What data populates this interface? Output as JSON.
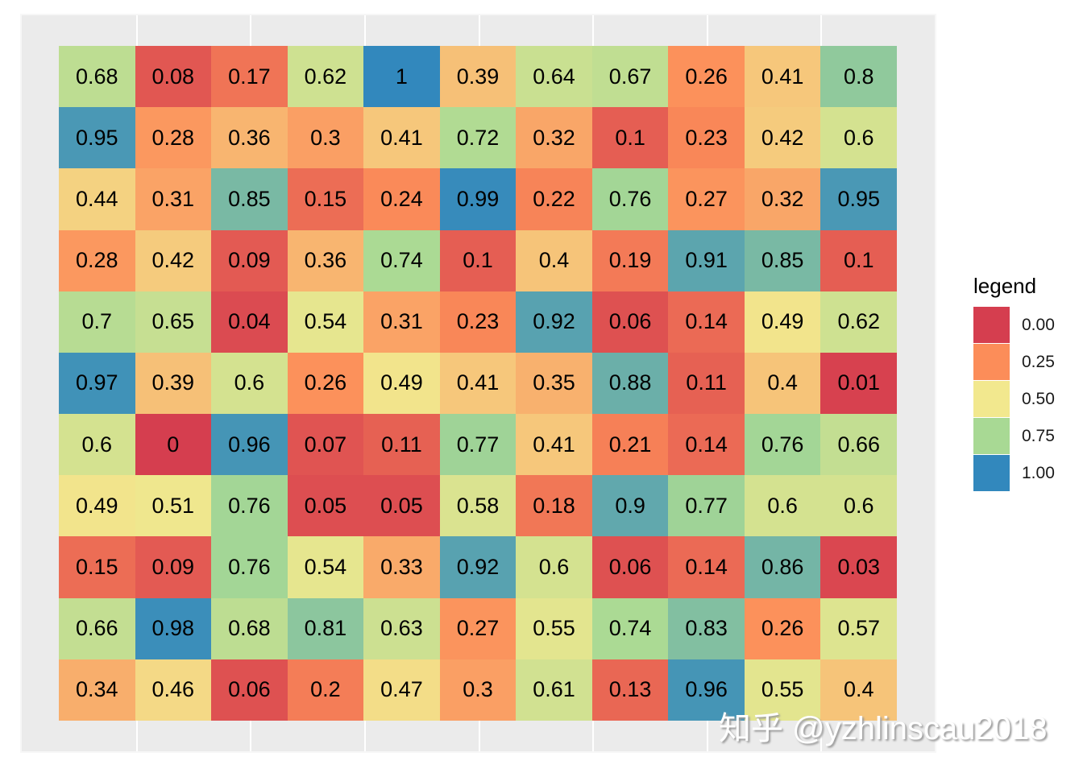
{
  "chart_data": {
    "type": "heatmap",
    "title": "",
    "xlabel": "",
    "ylabel": "",
    "rows": 11,
    "cols": 11,
    "values": [
      [
        0.68,
        0.08,
        0.17,
        0.62,
        1,
        0.39,
        0.64,
        0.67,
        0.26,
        0.41,
        0.8
      ],
      [
        0.95,
        0.28,
        0.36,
        0.3,
        0.41,
        0.72,
        0.32,
        0.1,
        0.23,
        0.42,
        0.6
      ],
      [
        0.44,
        0.31,
        0.85,
        0.15,
        0.24,
        0.99,
        0.22,
        0.76,
        0.27,
        0.32,
        0.95
      ],
      [
        0.28,
        0.42,
        0.09,
        0.36,
        0.74,
        0.1,
        0.4,
        0.19,
        0.91,
        0.85,
        0.1
      ],
      [
        0.7,
        0.65,
        0.04,
        0.54,
        0.31,
        0.23,
        0.92,
        0.06,
        0.14,
        0.49,
        0.62
      ],
      [
        0.97,
        0.39,
        0.6,
        0.26,
        0.49,
        0.41,
        0.35,
        0.88,
        0.11,
        0.4,
        0.01
      ],
      [
        0.6,
        0,
        0.96,
        0.07,
        0.11,
        0.77,
        0.41,
        0.21,
        0.14,
        0.76,
        0.66
      ],
      [
        0.49,
        0.51,
        0.76,
        0.05,
        0.05,
        0.58,
        0.18,
        0.9,
        0.77,
        0.6,
        0.6
      ],
      [
        0.15,
        0.09,
        0.76,
        0.54,
        0.33,
        0.92,
        0.6,
        0.06,
        0.14,
        0.86,
        0.03
      ],
      [
        0.66,
        0.98,
        0.68,
        0.81,
        0.63,
        0.27,
        0.55,
        0.74,
        0.83,
        0.26,
        0.57
      ],
      [
        0.34,
        0.46,
        0.06,
        0.2,
        0.47,
        0.3,
        0.61,
        0.13,
        0.96,
        0.55,
        0.4
      ]
    ],
    "value_range": [
      0,
      1
    ],
    "colorscale": [
      {
        "value": 0.0,
        "color": "#d53e4f"
      },
      {
        "value": 0.25,
        "color": "#fc8d59"
      },
      {
        "value": 0.5,
        "color": "#f2e88e"
      },
      {
        "value": 0.75,
        "color": "#a8d994"
      },
      {
        "value": 1.0,
        "color": "#3288bd"
      }
    ],
    "legend": {
      "title": "legend",
      "position": "right",
      "entries": [
        {
          "label": "0.00",
          "color": "#d53e4f"
        },
        {
          "label": "0.25",
          "color": "#fc8d59"
        },
        {
          "label": "0.50",
          "color": "#f2e88e"
        },
        {
          "label": "0.75",
          "color": "#a8d994"
        },
        {
          "label": "1.00",
          "color": "#3288bd"
        }
      ]
    },
    "grid": true,
    "cell_labels": true
  },
  "watermark": "知乎 @yzhlinscau2018"
}
